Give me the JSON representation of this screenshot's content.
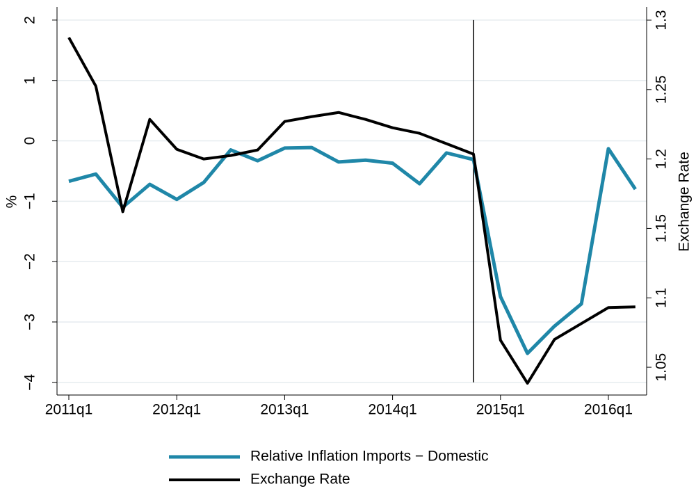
{
  "chart_data": {
    "type": "line",
    "categories": [
      "2011q1",
      null,
      null,
      null,
      "2012q1",
      null,
      null,
      null,
      "2013q1",
      null,
      null,
      null,
      "2014q1",
      null,
      null,
      null,
      "2015q1",
      null,
      null,
      null,
      "2016q1",
      null
    ],
    "y_label": "%",
    "y2_label": "Exchange Rate",
    "ylim": [
      -4.21,
      2.16
    ],
    "yticks": [
      {
        "value": -4,
        "label": "−4"
      },
      {
        "value": -3,
        "label": "−3"
      },
      {
        "value": -2,
        "label": "−2"
      },
      {
        "value": -1,
        "label": "−1"
      },
      0,
      1,
      2
    ],
    "y2lim": [
      1.03,
      1.307
    ],
    "y2ticks": [
      1.05,
      1.1,
      1.15,
      1.2,
      1.25,
      1.3
    ],
    "grid": true,
    "vline": 15,
    "series": [
      {
        "name": "Relative Inflation Imports − Domestic",
        "color": "#1f87a8",
        "width": 5,
        "values": [
          -0.67,
          -0.55,
          -1.1,
          -0.72,
          -0.97,
          -0.69,
          -0.15,
          -0.33,
          -0.12,
          -0.11,
          -0.35,
          -0.32,
          -0.37,
          -0.71,
          -0.2,
          -0.31,
          -2.58,
          -3.52,
          -3.07,
          -2.7,
          -0.13,
          -0.8
        ]
      },
      {
        "name": "Exchange Rate",
        "color": "#000000",
        "width": 4,
        "axis": "y2",
        "values": [
          1.2875,
          1.2525,
          1.162,
          1.2285,
          1.207,
          1.2,
          1.2025,
          1.2065,
          1.227,
          1.2305,
          1.2335,
          1.2285,
          1.2225,
          1.2185,
          1.211,
          1.2035,
          1.0695,
          1.0385,
          1.07,
          1.0815,
          1.093,
          1.0935
        ]
      }
    ]
  }
}
